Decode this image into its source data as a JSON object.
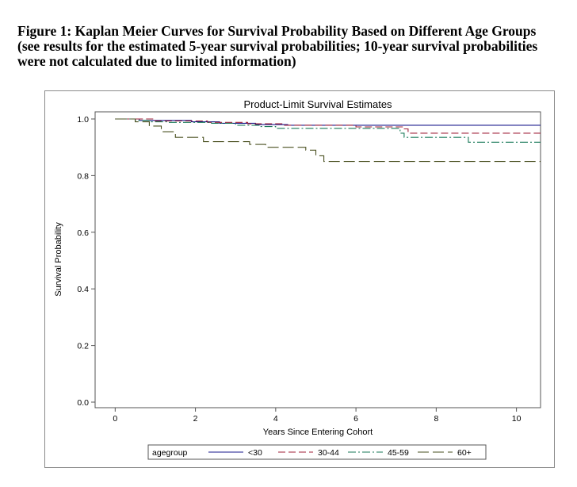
{
  "figure": {
    "caption_lines": [
      "Figure 1: Kaplan Meier Curves for Survival Probability Based on Different Age Groups",
      "(see results for the estimated 5-year survival probabilities; 10-year survival probabilities",
      "were not calculated due to limited information)"
    ]
  },
  "chart_data": {
    "type": "line",
    "step": true,
    "title": "Product-Limit Survival Estimates",
    "xlabel": "Years Since Entering Cohort",
    "ylabel": "Survival Probability",
    "xlim": [
      -0.5,
      10.6
    ],
    "ylim": [
      0.0,
      1.0
    ],
    "xticks": [
      0,
      2,
      4,
      6,
      8,
      10
    ],
    "xtick_labels": [
      "0",
      "2",
      "4",
      "6",
      "8",
      "10"
    ],
    "yticks": [
      0.0,
      0.2,
      0.4,
      0.6,
      0.8,
      1.0
    ],
    "ytick_labels": [
      "0.0",
      "0.2",
      "0.4",
      "0.6",
      "0.8",
      "1.0"
    ],
    "grid": false,
    "legend": {
      "title": "agegroup",
      "position": "bottom"
    },
    "series": [
      {
        "name": "<30",
        "color": "#1a1a8c",
        "dash": "solid",
        "points": [
          [
            0,
            1.0
          ],
          [
            0.6,
            0.995
          ],
          [
            1.9,
            0.99
          ],
          [
            2.6,
            0.985
          ],
          [
            3.5,
            0.98
          ],
          [
            4.3,
            0.978
          ],
          [
            10.6,
            0.978
          ]
        ]
      },
      {
        "name": "30-44",
        "color": "#a0203a",
        "dash": "long",
        "points": [
          [
            0,
            1.0
          ],
          [
            1.0,
            0.993
          ],
          [
            2.3,
            0.988
          ],
          [
            3.3,
            0.983
          ],
          [
            4.2,
            0.978
          ],
          [
            6.0,
            0.972
          ],
          [
            7.2,
            0.965
          ],
          [
            7.3,
            0.95
          ],
          [
            10.6,
            0.95
          ]
        ]
      },
      {
        "name": "45-59",
        "color": "#1a7a5a",
        "dash": "dashdot",
        "points": [
          [
            0,
            1.0
          ],
          [
            0.5,
            0.995
          ],
          [
            0.9,
            0.99
          ],
          [
            1.3,
            0.988
          ],
          [
            2.4,
            0.985
          ],
          [
            3.0,
            0.978
          ],
          [
            3.6,
            0.973
          ],
          [
            4.0,
            0.967
          ],
          [
            7.1,
            0.95
          ],
          [
            7.2,
            0.935
          ],
          [
            8.8,
            0.918
          ],
          [
            10.6,
            0.918
          ]
        ]
      },
      {
        "name": "60+",
        "color": "#4a5020",
        "dash": "longdash",
        "points": [
          [
            0,
            1.0
          ],
          [
            0.5,
            0.99
          ],
          [
            0.85,
            0.975
          ],
          [
            1.15,
            0.955
          ],
          [
            1.5,
            0.935
          ],
          [
            2.2,
            0.92
          ],
          [
            3.35,
            0.91
          ],
          [
            3.75,
            0.9
          ],
          [
            4.75,
            0.89
          ],
          [
            5.0,
            0.87
          ],
          [
            5.2,
            0.85
          ],
          [
            10.6,
            0.85
          ]
        ]
      }
    ]
  }
}
